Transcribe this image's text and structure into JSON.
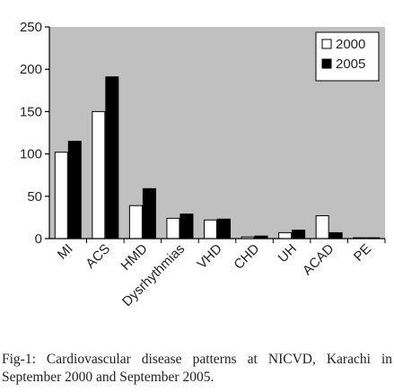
{
  "chart_data": {
    "type": "bar",
    "categories": [
      "MI",
      "ACS",
      "HMD",
      "Dysrhythmias",
      "VHD",
      "CHD",
      "UH",
      "ACAD",
      "PE"
    ],
    "series": [
      {
        "name": "2000",
        "values": [
          102,
          150,
          39,
          24,
          22,
          2,
          7,
          27,
          1
        ],
        "color": "#ffffff"
      },
      {
        "name": "2005",
        "values": [
          115,
          191,
          59,
          29,
          23,
          3,
          10,
          7,
          1
        ],
        "color": "#000000"
      }
    ],
    "yticks": [
      0,
      50,
      100,
      150,
      200,
      250
    ],
    "ylim": [
      0,
      250
    ],
    "grid": false,
    "legend": "top-right",
    "plot_background": "#c0c0c0"
  },
  "caption": "Fig-1: Cardiovascular disease patterns at NICVD, Karachi in September 2000 and September 2005."
}
